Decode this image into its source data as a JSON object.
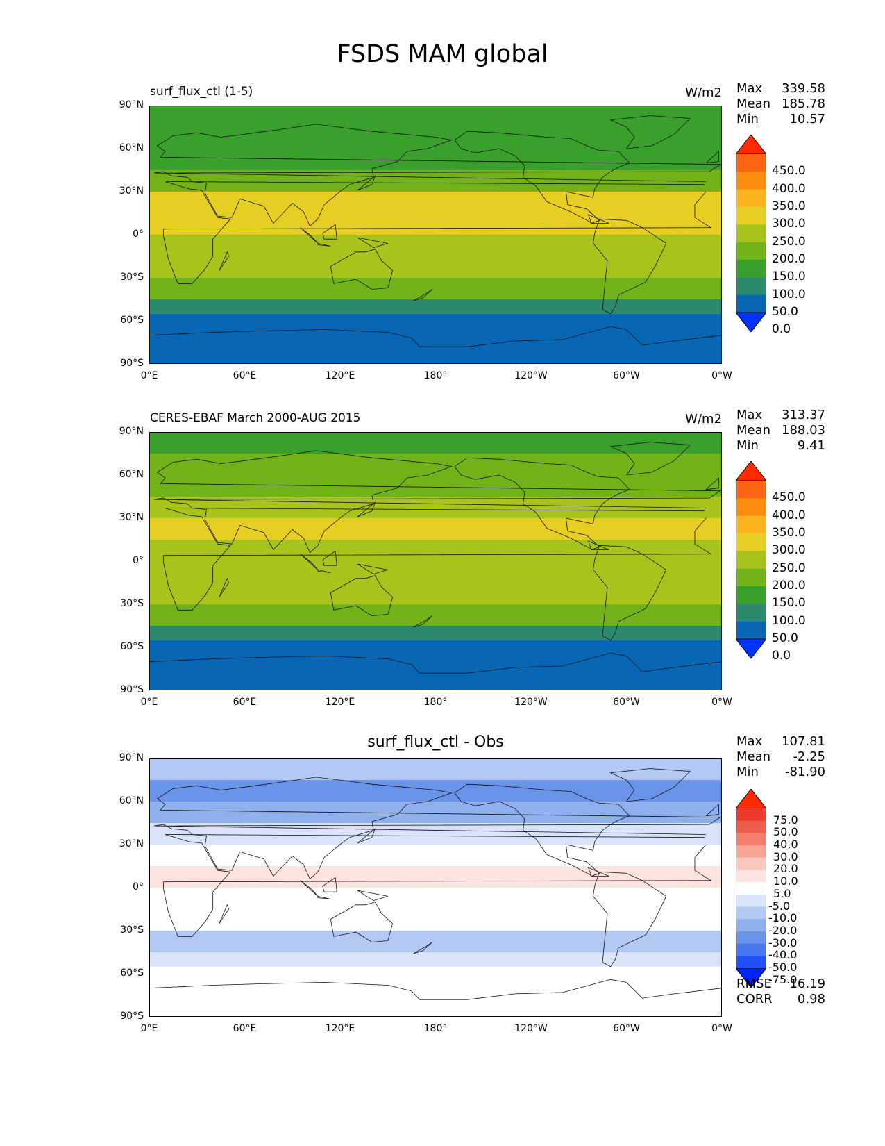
{
  "title": "FSDS MAM global",
  "coast_color": "#111111",
  "lat_labels": [
    "90°N",
    "60°N",
    "30°N",
    "0°",
    "30°S",
    "60°S",
    "90°S"
  ],
  "lon_labels": [
    "0°E",
    "60°E",
    "120°E",
    "180°",
    "120°W",
    "60°W",
    "0°W"
  ],
  "panels": [
    {
      "subtitle": "surf_flux_ctl (1-5)",
      "units": "W/m2",
      "stats": [
        {
          "name": "Max",
          "value": "339.58"
        },
        {
          "name": "Mean",
          "value": "185.78"
        },
        {
          "name": "Min",
          "value": "10.57"
        }
      ],
      "colorbar": {
        "levels": [
          "450.0",
          "400.0",
          "350.0",
          "300.0",
          "250.0",
          "200.0",
          "150.0",
          "100.0",
          "50.0",
          "0.0"
        ],
        "colors": [
          "#0033ff",
          "#0666b3",
          "#2e8a6e",
          "#3aa02c",
          "#72b319",
          "#a9c31c",
          "#e6cf22",
          "#fbb41e",
          "#fc8c0d",
          "#fd6314",
          "#fe2c00"
        ]
      }
    },
    {
      "subtitle": "CERES-EBAF March 2000-AUG 2015",
      "units": "W/m2",
      "stats": [
        {
          "name": "Max",
          "value": "313.37"
        },
        {
          "name": "Mean",
          "value": "188.03"
        },
        {
          "name": "Min",
          "value": "9.41"
        }
      ],
      "colorbar": {
        "levels": [
          "450.0",
          "400.0",
          "350.0",
          "300.0",
          "250.0",
          "200.0",
          "150.0",
          "100.0",
          "50.0",
          "0.0"
        ],
        "colors": [
          "#0033ff",
          "#0666b3",
          "#2e8a6e",
          "#3aa02c",
          "#72b319",
          "#a9c31c",
          "#e6cf22",
          "#fbb41e",
          "#fc8c0d",
          "#fd6314",
          "#fe2c00"
        ]
      }
    },
    {
      "subtitle": "surf_flux_ctl - Obs",
      "units": "",
      "stats": [
        {
          "name": "Max",
          "value": "107.81"
        },
        {
          "name": "Mean",
          "value": "-2.25"
        },
        {
          "name": "Min",
          "value": "-81.90"
        }
      ],
      "colorbar": {
        "levels": [
          "75.0",
          "50.0",
          "40.0",
          "30.0",
          "20.0",
          "10.0",
          "5.0",
          "-5.0",
          "-10.0",
          "-20.0",
          "-30.0",
          "-40.0",
          "-50.0",
          "-75.0"
        ],
        "colors": [
          "#0025ff",
          "#2050f8",
          "#4677f0",
          "#6a94ea",
          "#8eb0ee",
          "#b3c8f3",
          "#d9e3fa",
          "#ffffff",
          "#fde3df",
          "#fbc7be",
          "#f7a495",
          "#f3806f",
          "#ee5a4c",
          "#eb3a2c",
          "#ff2a00"
        ]
      },
      "diff_stats": [
        {
          "name": "RMSE",
          "value": "16.19"
        },
        {
          "name": "CORR",
          "value": "0.98"
        }
      ]
    }
  ],
  "chart_data": [
    {
      "type": "heatmap",
      "subtitle": "surf_flux_ctl (1-5)",
      "units": "W/m2",
      "lat_ticks": [
        "90°N",
        "60°N",
        "30°N",
        "0°",
        "30°S",
        "60°S",
        "90°S"
      ],
      "lon_ticks": [
        "0°E",
        "60°E",
        "120°E",
        "180°",
        "120°W",
        "60°W",
        "0°W"
      ],
      "xlim": [
        0,
        360
      ],
      "ylim": [
        -90,
        90
      ],
      "levels": [
        0,
        50,
        100,
        150,
        200,
        250,
        300,
        350,
        400,
        450
      ],
      "zonal_bands": [
        {
          "lat": [
            75,
            90
          ],
          "value": 125
        },
        {
          "lat": [
            60,
            75
          ],
          "value": 125
        },
        {
          "lat": [
            45,
            60
          ],
          "value": 125
        },
        {
          "lat": [
            30,
            45
          ],
          "value": 175
        },
        {
          "lat": [
            15,
            30
          ],
          "value": 275
        },
        {
          "lat": [
            0,
            15
          ],
          "value": 275
        },
        {
          "lat": [
            -15,
            0
          ],
          "value": 225
        },
        {
          "lat": [
            -30,
            -15
          ],
          "value": 225
        },
        {
          "lat": [
            -45,
            -30
          ],
          "value": 175
        },
        {
          "lat": [
            -55,
            -45
          ],
          "value": 75
        },
        {
          "lat": [
            -90,
            -55
          ],
          "value": 25
        }
      ],
      "max": 339.58,
      "mean": 185.78,
      "min": 10.57
    },
    {
      "type": "heatmap",
      "subtitle": "CERES-EBAF March 2000-AUG 2015",
      "units": "W/m2",
      "lat_ticks": [
        "90°N",
        "60°N",
        "30°N",
        "0°",
        "30°S",
        "60°S",
        "90°S"
      ],
      "lon_ticks": [
        "0°E",
        "60°E",
        "120°E",
        "180°",
        "120°W",
        "60°W",
        "0°W"
      ],
      "xlim": [
        0,
        360
      ],
      "ylim": [
        -90,
        90
      ],
      "levels": [
        0,
        50,
        100,
        150,
        200,
        250,
        300,
        350,
        400,
        450
      ],
      "zonal_bands": [
        {
          "lat": [
            75,
            90
          ],
          "value": 125
        },
        {
          "lat": [
            60,
            75
          ],
          "value": 175
        },
        {
          "lat": [
            45,
            60
          ],
          "value": 175
        },
        {
          "lat": [
            30,
            45
          ],
          "value": 225
        },
        {
          "lat": [
            15,
            30
          ],
          "value": 275
        },
        {
          "lat": [
            0,
            15
          ],
          "value": 225
        },
        {
          "lat": [
            -15,
            0
          ],
          "value": 225
        },
        {
          "lat": [
            -30,
            -15
          ],
          "value": 225
        },
        {
          "lat": [
            -45,
            -30
          ],
          "value": 175
        },
        {
          "lat": [
            -55,
            -45
          ],
          "value": 75
        },
        {
          "lat": [
            -90,
            -55
          ],
          "value": 25
        }
      ],
      "max": 313.37,
      "mean": 188.03,
      "min": 9.41
    },
    {
      "type": "heatmap",
      "subtitle": "surf_flux_ctl - Obs",
      "lat_ticks": [
        "90°N",
        "60°N",
        "30°N",
        "0°",
        "30°S",
        "60°S",
        "90°S"
      ],
      "lon_ticks": [
        "0°E",
        "60°E",
        "120°E",
        "180°",
        "120°W",
        "60°W",
        "0°W"
      ],
      "xlim": [
        0,
        360
      ],
      "ylim": [
        -90,
        90
      ],
      "levels": [
        -75,
        -50,
        -40,
        -30,
        -20,
        -10,
        -5,
        5,
        10,
        20,
        30,
        40,
        50,
        75
      ],
      "zonal_bands": [
        {
          "lat": [
            75,
            90
          ],
          "value": -15
        },
        {
          "lat": [
            60,
            75
          ],
          "value": -35
        },
        {
          "lat": [
            45,
            60
          ],
          "value": -25
        },
        {
          "lat": [
            30,
            45
          ],
          "value": -7
        },
        {
          "lat": [
            15,
            30
          ],
          "value": 0
        },
        {
          "lat": [
            0,
            15
          ],
          "value": 8
        },
        {
          "lat": [
            -15,
            0
          ],
          "value": 0
        },
        {
          "lat": [
            -30,
            -15
          ],
          "value": -2
        },
        {
          "lat": [
            -45,
            -30
          ],
          "value": -12
        },
        {
          "lat": [
            -55,
            -45
          ],
          "value": -7
        },
        {
          "lat": [
            -90,
            -55
          ],
          "value": 0
        }
      ],
      "max": 107.81,
      "mean": -2.25,
      "min": -81.9,
      "rmse": 16.19,
      "corr": 0.98
    }
  ]
}
